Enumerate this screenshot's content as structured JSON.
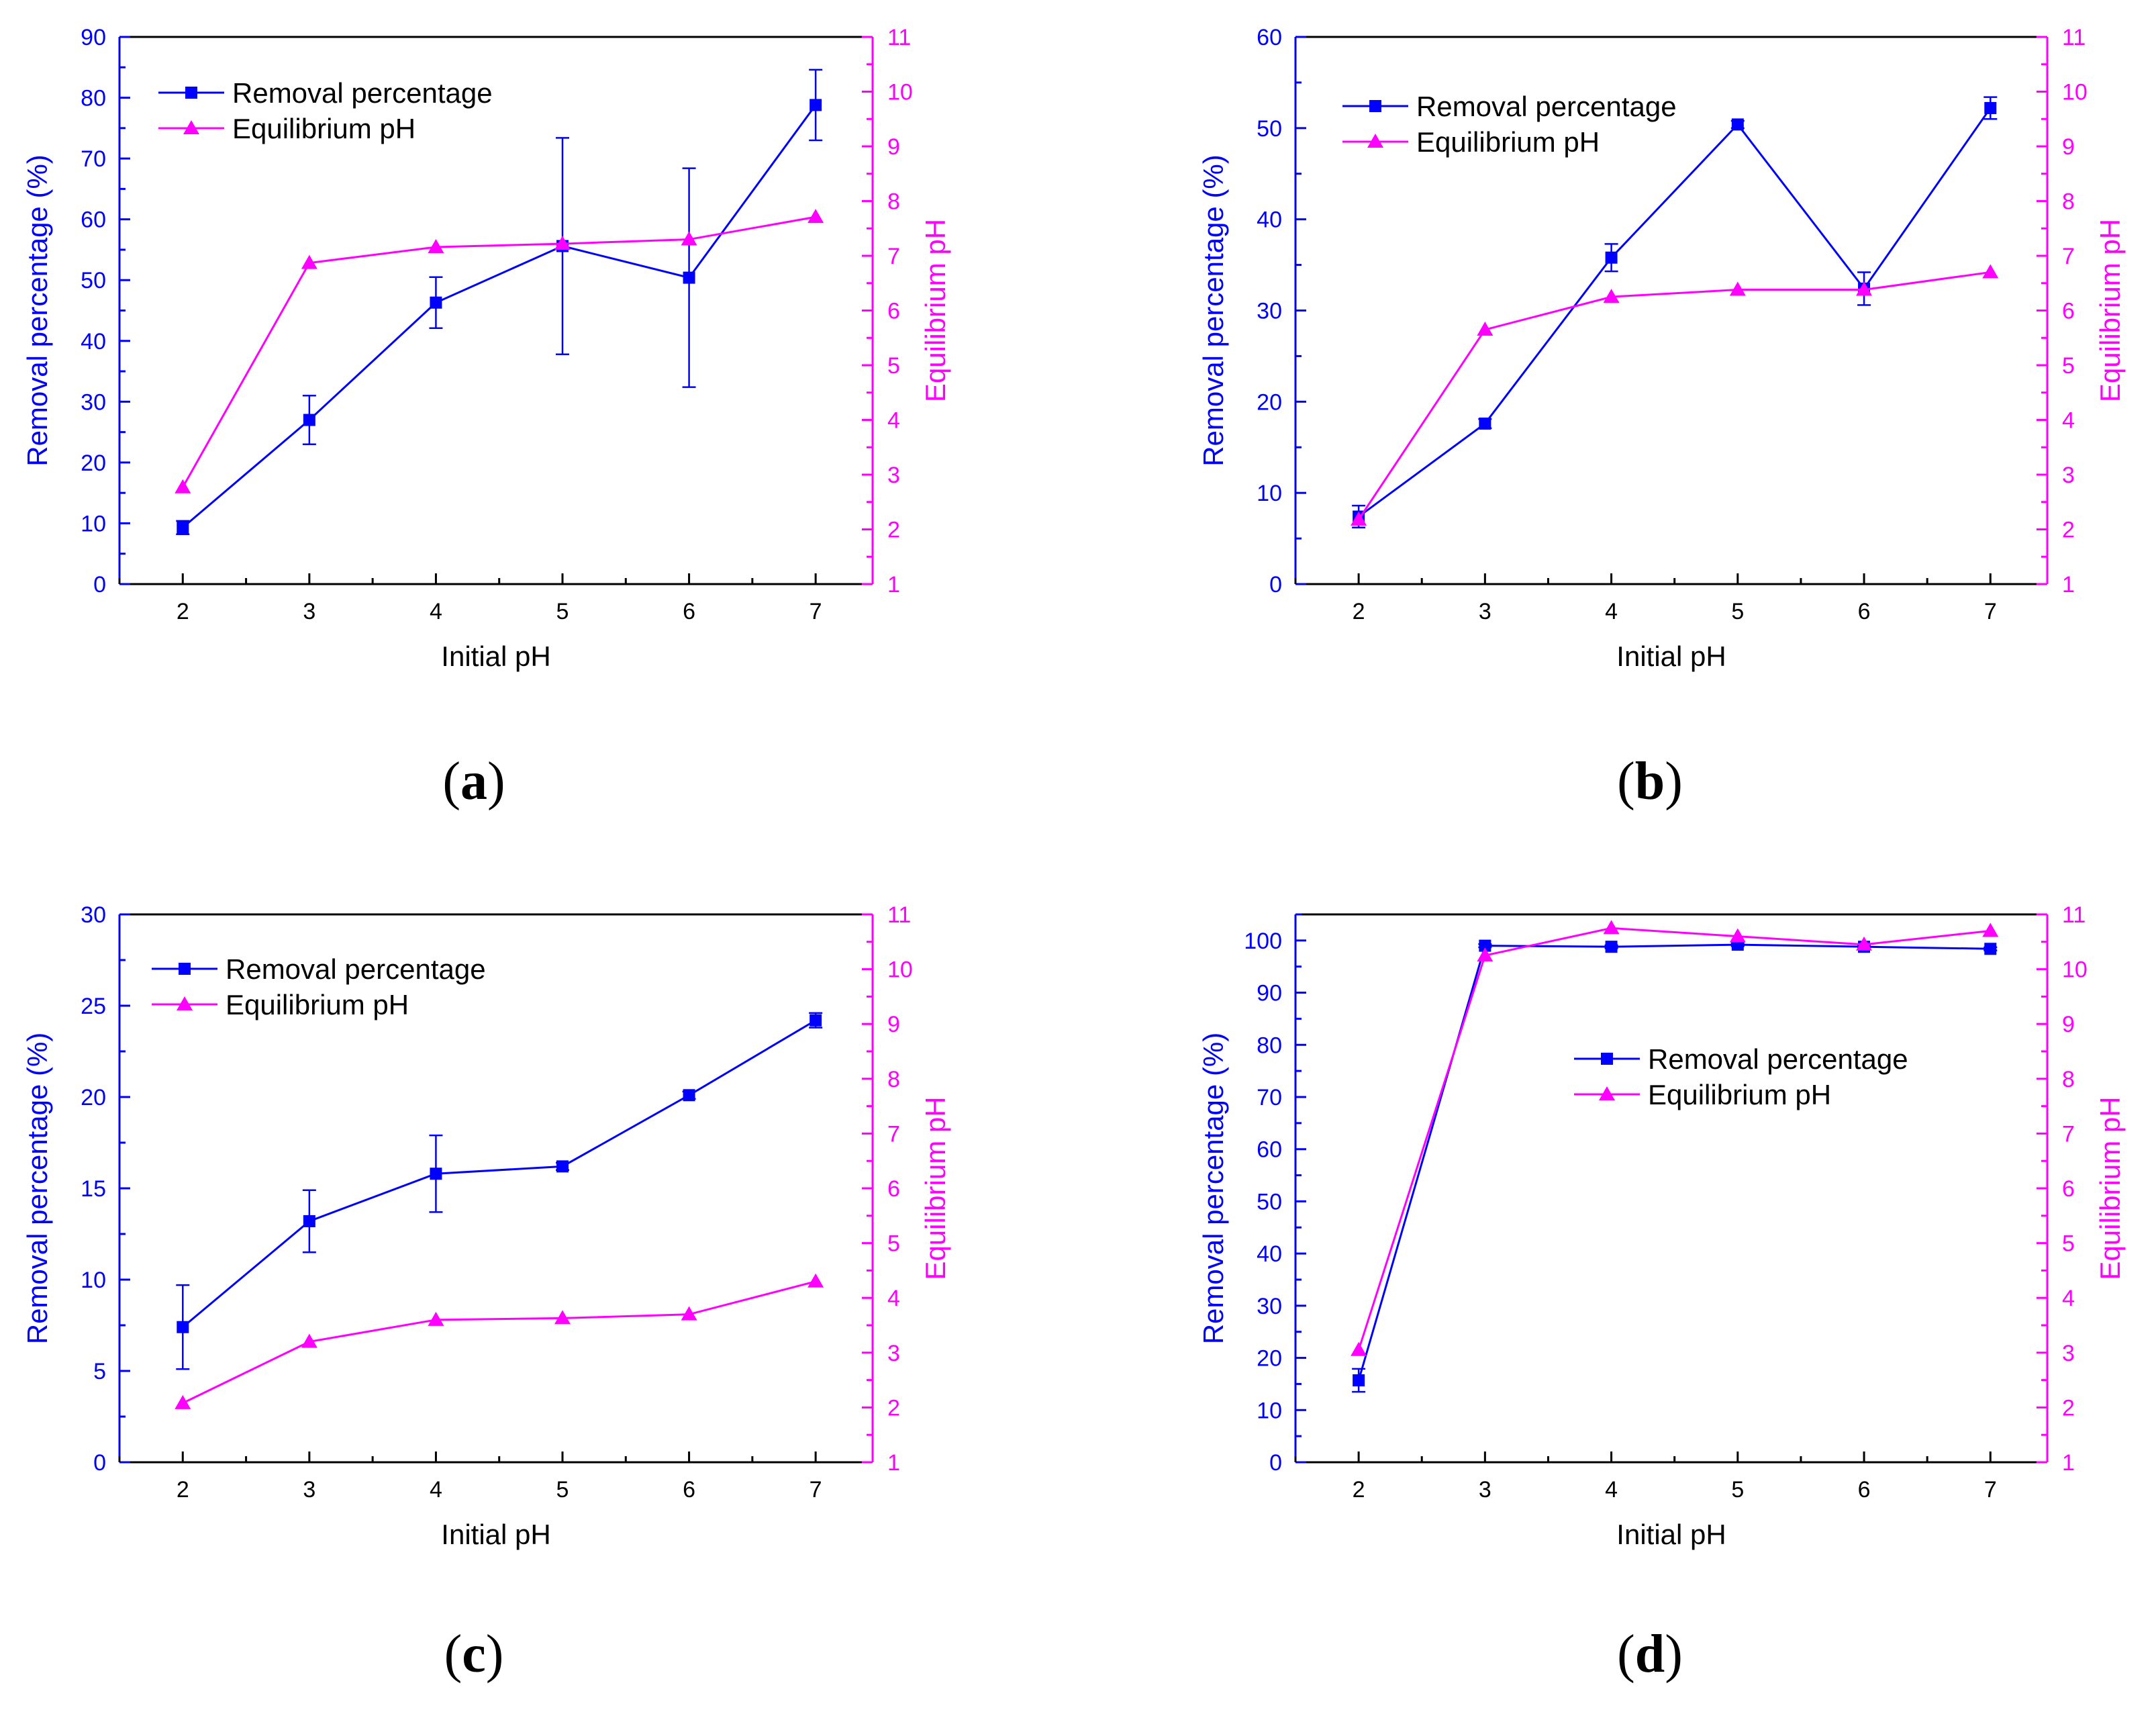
{
  "colors": {
    "removal": "#0000ff",
    "ph": "#ff00ff",
    "axis": "#000000"
  },
  "chart_data": [
    {
      "panel": "a",
      "type": "line",
      "xlabel": "Initial pH",
      "ylabel": "Removal percentage (%)",
      "y2label": "Equilibrium pH",
      "x": [
        2,
        3,
        4,
        5,
        6,
        7
      ],
      "xlim": [
        1.5,
        7.45
      ],
      "ylim": [
        0,
        90
      ],
      "y2lim": [
        1,
        11
      ],
      "yticks": [
        0,
        10,
        20,
        30,
        40,
        50,
        60,
        70,
        80,
        90
      ],
      "y2ticks": [
        1,
        2,
        3,
        4,
        5,
        6,
        7,
        8,
        9,
        10,
        11
      ],
      "legend_position": "top-left",
      "series": [
        {
          "name": "Removal percentage",
          "axis": "left",
          "marker": "square",
          "values": [
            9.3,
            27.0,
            46.3,
            55.6,
            50.4,
            78.8
          ],
          "errors": [
            1.1,
            4.0,
            4.2,
            17.8,
            18.0,
            5.8
          ]
        },
        {
          "name": "Equilibrium pH",
          "axis": "right",
          "marker": "triangle",
          "values": [
            2.77,
            6.87,
            7.16,
            7.22,
            7.3,
            7.71
          ]
        }
      ]
    },
    {
      "panel": "b",
      "type": "line",
      "xlabel": "Initial pH",
      "ylabel": "Removal percentage (%)",
      "y2label": "Equilibrium pH",
      "x": [
        2,
        3,
        4,
        5,
        6,
        7
      ],
      "xlim": [
        1.5,
        7.45
      ],
      "ylim": [
        0,
        60
      ],
      "y2lim": [
        1,
        11
      ],
      "yticks": [
        0,
        10,
        20,
        30,
        40,
        50,
        60
      ],
      "y2ticks": [
        1,
        2,
        3,
        4,
        5,
        6,
        7,
        8,
        9,
        10,
        11
      ],
      "legend_position": "top-left",
      "series": [
        {
          "name": "Removal percentage",
          "axis": "left",
          "marker": "square",
          "values": [
            7.4,
            17.6,
            35.8,
            50.4,
            32.4,
            52.2
          ],
          "errors": [
            1.2,
            0.5,
            1.5,
            0.4,
            1.8,
            1.2
          ]
        },
        {
          "name": "Equilibrium pH",
          "axis": "right",
          "marker": "triangle",
          "values": [
            2.18,
            5.65,
            6.25,
            6.38,
            6.38,
            6.7
          ]
        }
      ]
    },
    {
      "panel": "c",
      "type": "line",
      "xlabel": "Initial pH",
      "ylabel": "Removal percentage (%)",
      "y2label": "Equilibrium pH",
      "x": [
        2,
        3,
        4,
        5,
        6,
        7
      ],
      "xlim": [
        1.5,
        7.45
      ],
      "ylim": [
        0,
        30
      ],
      "y2lim": [
        1,
        11
      ],
      "yticks": [
        0,
        5,
        10,
        15,
        20,
        25,
        30
      ],
      "y2ticks": [
        1,
        2,
        3,
        4,
        5,
        6,
        7,
        8,
        9,
        10,
        11
      ],
      "legend_position": "top-left",
      "series": [
        {
          "name": "Removal percentage",
          "axis": "left",
          "marker": "square",
          "values": [
            7.4,
            13.2,
            15.8,
            16.2,
            20.1,
            24.2
          ],
          "errors": [
            2.3,
            1.7,
            2.1,
            0.2,
            0.2,
            0.4
          ]
        },
        {
          "name": "Equilibrium pH",
          "axis": "right",
          "marker": "triangle",
          "values": [
            2.08,
            3.2,
            3.6,
            3.63,
            3.7,
            4.3
          ]
        }
      ]
    },
    {
      "panel": "d",
      "type": "line",
      "xlabel": "Initial pH",
      "ylabel": "Removal percentage (%)",
      "y2label": "Equilibrium pH",
      "x": [
        2,
        3,
        4,
        5,
        6,
        7
      ],
      "xlim": [
        1.5,
        7.45
      ],
      "ylim": [
        0,
        105
      ],
      "y2lim": [
        1,
        11
      ],
      "yticks": [
        0,
        10,
        20,
        30,
        40,
        50,
        60,
        70,
        80,
        90,
        100
      ],
      "y2ticks": [
        1,
        2,
        3,
        4,
        5,
        6,
        7,
        8,
        9,
        10,
        11
      ],
      "legend_position": "center-right",
      "series": [
        {
          "name": "Removal percentage",
          "axis": "left",
          "marker": "square",
          "values": [
            15.7,
            99.0,
            98.8,
            99.2,
            98.8,
            98.4
          ],
          "errors": [
            2.2,
            0.3,
            0.3,
            0.3,
            0.3,
            0.3
          ]
        },
        {
          "name": "Equilibrium pH",
          "axis": "right",
          "marker": "triangle",
          "values": [
            3.05,
            10.25,
            10.75,
            10.6,
            10.45,
            10.7
          ]
        }
      ]
    }
  ]
}
